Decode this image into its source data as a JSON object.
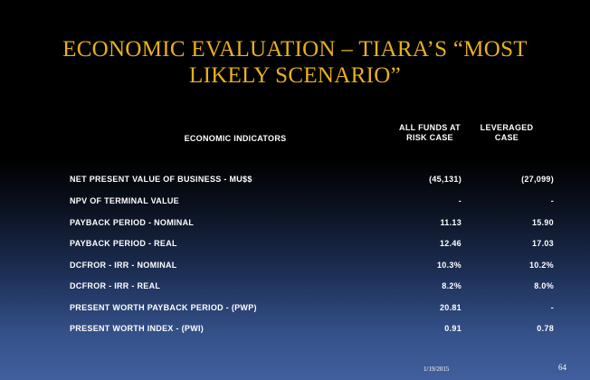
{
  "slide": {
    "title_line1": "ECONOMIC EVALUATION – TIARA’S “MOST",
    "title_line2": "LIKELY  SCENARIO”",
    "header_indicators": "ECONOMIC INDICATORS",
    "header_col1": "ALL  FUNDS AT\nRISK CASE",
    "header_col1_line1": "ALL  FUNDS AT",
    "header_col1_line2": "RISK CASE",
    "header_col2_line1": "LEVERAGED",
    "header_col2_line2": "CASE",
    "rows": [
      {
        "label": "NET PRESENT  VALUE  OF BUSINESS  - MU$$",
        "all_funds": "(45,131)",
        "leveraged": "(27,099)"
      },
      {
        "label": "NPV OF TERMINAL  VALUE",
        "all_funds": "-",
        "leveraged": "-"
      },
      {
        "label": "PAYBACK  PERIOD - NOMINAL",
        "all_funds": "11.13",
        "leveraged": "15.90"
      },
      {
        "label": "PAYBACK  PERIOD - REAL",
        "all_funds": "12.46",
        "leveraged": "17.03"
      },
      {
        "label": "DCFROR - IRR - NOMINAL",
        "all_funds": "10.3%",
        "leveraged": "10.2%"
      },
      {
        "label": "DCFROR - IRR - REAL",
        "all_funds": "8.2%",
        "leveraged": "8.0%"
      },
      {
        "label": "PRESENT  WORTH PAYBACK PERIOD  - (PWP)",
        "all_funds": "20.81",
        "leveraged": "-"
      },
      {
        "label": "PRESENT  WORTH INDEX - (PWI)",
        "all_funds": "0.91",
        "leveraged": "0.78"
      }
    ],
    "footer_date": "1/19/2015",
    "footer_page": "64"
  },
  "colors": {
    "title": "#e8b020",
    "text": "#ffffff",
    "background_top": "#000000",
    "background_bottom": "#415f9c"
  }
}
